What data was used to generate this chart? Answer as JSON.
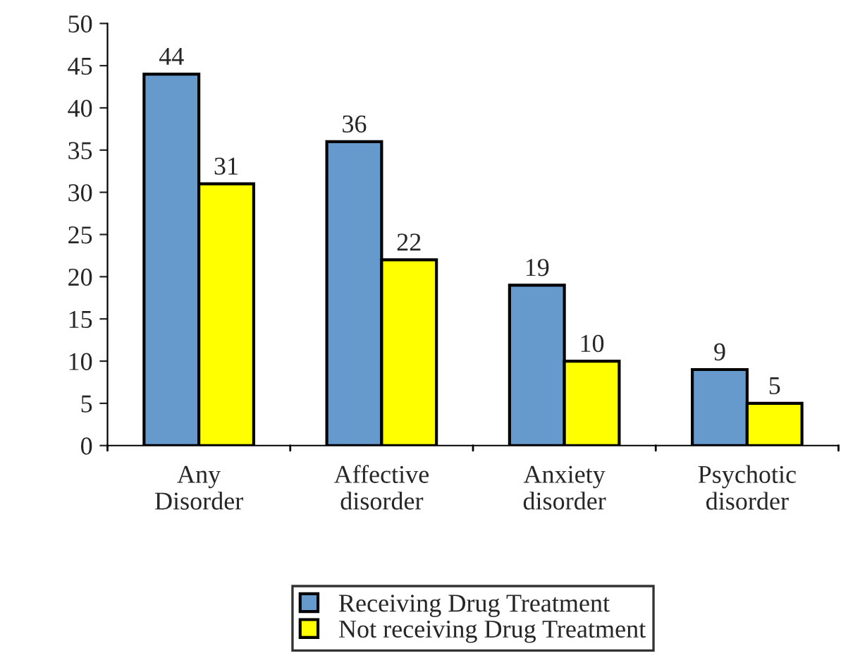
{
  "chart_data": {
    "type": "bar",
    "categories": [
      "Any\nDisorder",
      "Affective\ndisorder",
      "Anxiety\ndisorder",
      "Psychotic\ndisorder"
    ],
    "series": [
      {
        "name": "Receiving Drug Treatment",
        "color": "#6699cc",
        "values": [
          44,
          36,
          19,
          9
        ]
      },
      {
        "name": "Not receiving Drug Treatment",
        "color": "#ffff00",
        "values": [
          31,
          22,
          10,
          5
        ]
      }
    ],
    "ylim": [
      0,
      50
    ],
    "yticks": [
      0,
      5,
      10,
      15,
      20,
      25,
      30,
      35,
      40,
      45,
      50
    ],
    "data_labels": true,
    "legend": "bottom",
    "grid": false
  }
}
